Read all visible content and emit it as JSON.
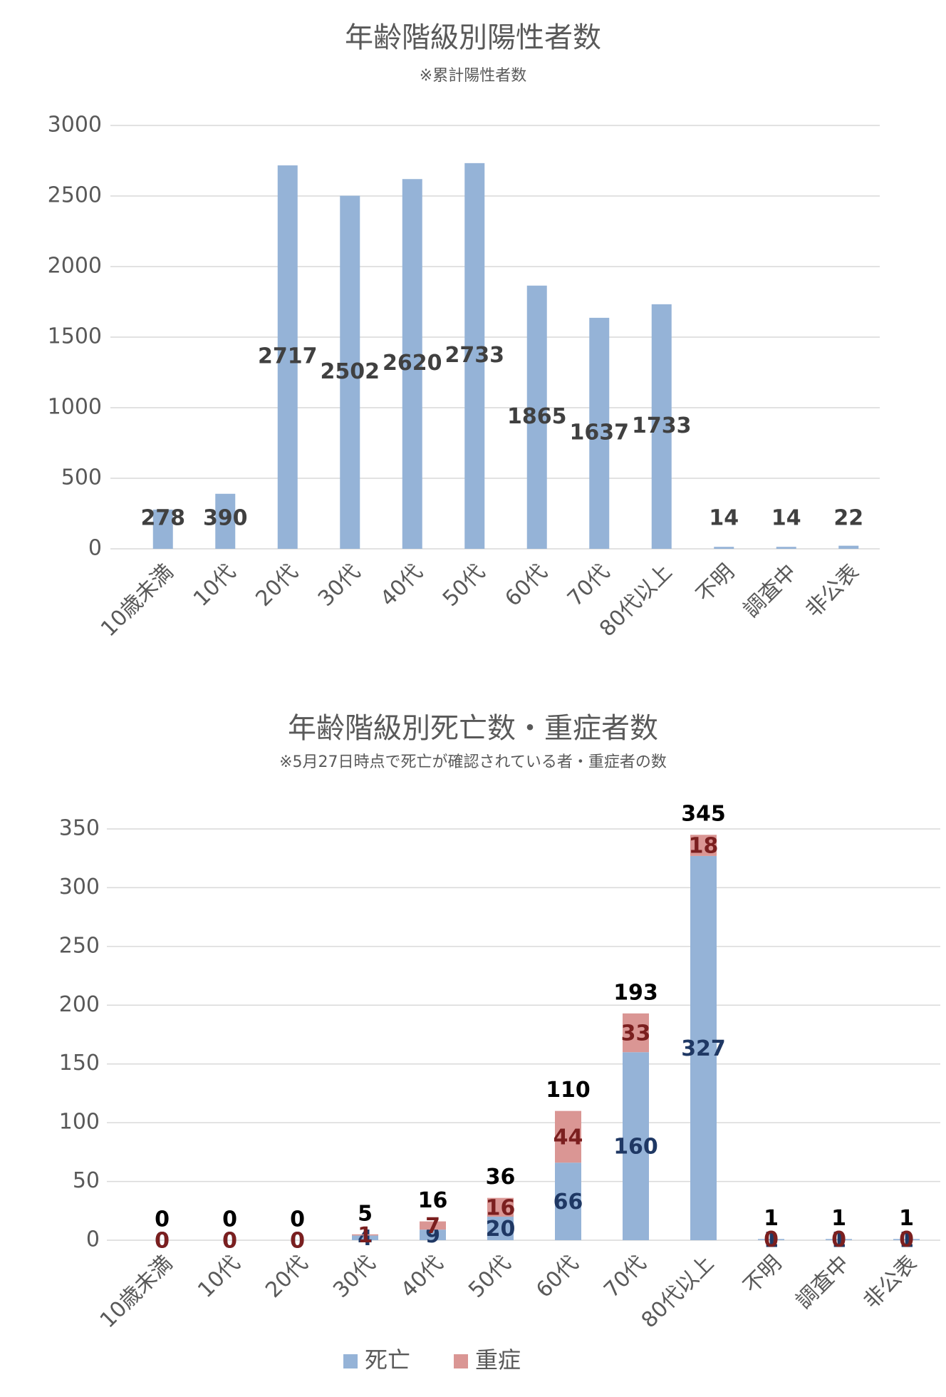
{
  "chart_data": [
    {
      "type": "bar",
      "title": "年齢階級別陽性者数",
      "subtitle": "※累計陽性者数",
      "categories": [
        "10歳未満",
        "10代",
        "20代",
        "30代",
        "40代",
        "50代",
        "60代",
        "70代",
        "80代以上",
        "不明",
        "調査中",
        "非公表"
      ],
      "values": [
        278,
        390,
        2717,
        2502,
        2620,
        2733,
        1865,
        1637,
        1733,
        14,
        14,
        22
      ],
      "color": "#95b3d7",
      "ylim": [
        0,
        3000
      ],
      "yticks": [
        0,
        500,
        1000,
        1500,
        2000,
        2500,
        3000
      ],
      "grid": true
    },
    {
      "type": "stacked_bar",
      "title": "年齢階級別死亡数・重症者数",
      "subtitle": "※5月27日時点で死亡が確認されている者・重症者の数",
      "categories": [
        "10歳未満",
        "10代",
        "20代",
        "30代",
        "40代",
        "50代",
        "60代",
        "70代",
        "80代以上",
        "不明",
        "調査中",
        "非公表"
      ],
      "series": [
        {
          "name": "死亡",
          "color": "#95b3d7",
          "values": [
            0,
            0,
            0,
            4,
            9,
            20,
            66,
            160,
            327,
            1,
            1,
            1
          ]
        },
        {
          "name": "重症",
          "color": "#da9694",
          "values": [
            0,
            0,
            0,
            1,
            7,
            16,
            44,
            33,
            18,
            0,
            0,
            0
          ]
        }
      ],
      "totals": [
        0,
        0,
        0,
        5,
        16,
        36,
        110,
        193,
        345,
        1,
        1,
        1
      ],
      "ylim": [
        0,
        350
      ],
      "yticks": [
        0,
        50,
        100,
        150,
        200,
        250,
        300,
        350
      ],
      "grid": true,
      "legend": "bottom"
    }
  ]
}
